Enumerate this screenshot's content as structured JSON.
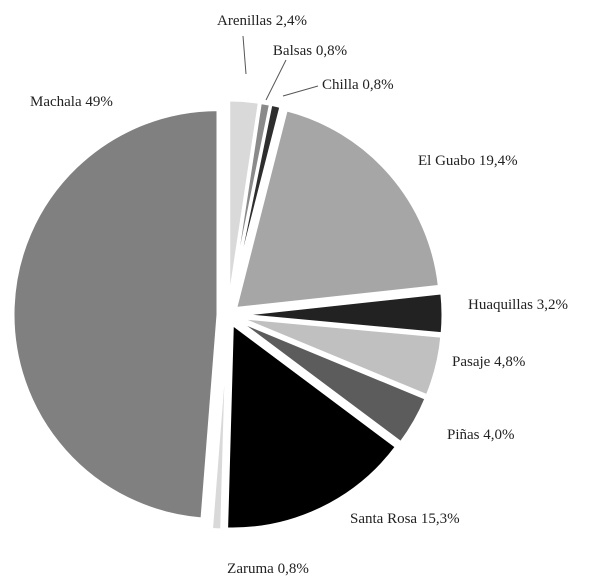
{
  "chart_data": {
    "type": "pie",
    "categories": [
      "Arenillas",
      "Balsas",
      "Chilla",
      "El Guabo",
      "Huaquillas",
      "Pasaje",
      "Piñas",
      "Santa Rosa",
      "Zaruma",
      "Machala"
    ],
    "values": [
      2.4,
      0.8,
      0.8,
      19.4,
      3.2,
      4.8,
      4.0,
      15.3,
      0.8,
      49
    ],
    "value_labels": [
      "2,4%",
      "0,8%",
      "0,8%",
      "19,4%",
      "3,2%",
      "4,8%",
      "4,0%",
      "15,3%",
      "0,8%",
      "49%"
    ],
    "colors": [
      "#d9d9d9",
      "#8a8a8a",
      "#2e2e2e",
      "#a6a6a6",
      "#222222",
      "#c0c0c0",
      "#5c5c5c",
      "#000000",
      "#d9d9d9",
      "#808080"
    ]
  }
}
